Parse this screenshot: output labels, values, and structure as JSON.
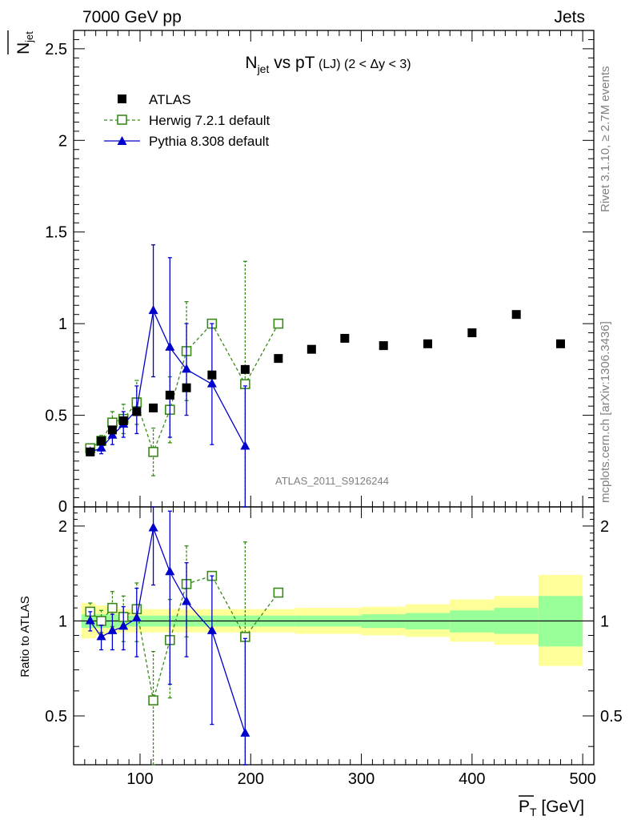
{
  "header": {
    "left": "7000 GeV pp",
    "right": "Jets"
  },
  "side_text": {
    "rivet": "Rivet 3.1.10, ≥ 2.7M events",
    "mcplots": "mcplots.cern.ch [arXiv:1306.3436]"
  },
  "watermark": "ATLAS_2011_S9126244",
  "colors": {
    "atlas": "#000000",
    "herwig": "#3a8a1a",
    "pythia": "#0000cc",
    "band_outer": "#ffff99",
    "band_inner": "#99ff99"
  },
  "chart_data": [
    {
      "type": "scatter",
      "title": "N_jet vs pT (LJ) (2 < Δy < 3)",
      "title_parts": {
        "main": "N",
        "sub": "jet",
        "rest": " vs pT",
        "small": " (LJ) (2 < Δy < 3)"
      },
      "ylabel": "N_jet",
      "ylim": [
        0,
        2.6
      ],
      "xlim": [
        40,
        510
      ],
      "yticks": [
        {
          "v": 0.5,
          "label": "0.5"
        },
        {
          "v": 1,
          "label": "1"
        },
        {
          "v": 1.5,
          "label": "1.5"
        },
        {
          "v": 2,
          "label": "2"
        },
        {
          "v": 2.5,
          "label": "2.5"
        }
      ],
      "legend_position": "top-left",
      "series": [
        {
          "name": "ATLAS",
          "marker": "filled-square",
          "x": [
            55,
            65,
            75,
            85,
            97,
            112,
            127,
            142,
            165,
            195,
            225,
            255,
            285,
            320,
            360,
            400,
            440,
            480
          ],
          "y": [
            0.3,
            0.36,
            0.42,
            0.47,
            0.52,
            0.54,
            0.61,
            0.65,
            0.72,
            0.75,
            0.81,
            0.86,
            0.92,
            0.88,
            0.89,
            0.95,
            1.05,
            0.89
          ]
        },
        {
          "name": "Herwig 7.2.1 default",
          "marker": "open-square-dashed",
          "x": [
            55,
            65,
            75,
            85,
            97,
            112,
            127,
            142,
            165,
            195,
            225
          ],
          "y": [
            0.32,
            0.36,
            0.46,
            0.48,
            0.57,
            0.3,
            0.53,
            0.85,
            1.0,
            0.67,
            1.0
          ],
          "err": [
            0.02,
            0.03,
            0.06,
            0.08,
            0.12,
            0.13,
            0.18,
            0.27,
            0.0,
            0.67,
            0.0
          ]
        },
        {
          "name": "Pythia 8.308 default",
          "marker": "filled-triangle",
          "x": [
            55,
            65,
            75,
            85,
            97,
            112,
            127,
            142,
            165,
            195
          ],
          "y": [
            0.3,
            0.32,
            0.39,
            0.45,
            0.53,
            1.07,
            0.87,
            0.75,
            0.67,
            0.33
          ],
          "err": [
            0.02,
            0.03,
            0.05,
            0.07,
            0.13,
            0.36,
            0.49,
            0.25,
            0.33,
            0.33
          ]
        }
      ]
    },
    {
      "type": "scatter",
      "title": "",
      "ylabel": "Ratio to ATLAS",
      "xlabel": "P_T [GeV]",
      "xlabel_parts": {
        "main": "P",
        "sub": "T",
        "unit": " [GeV]"
      },
      "xticks": [
        {
          "v": 100,
          "label": "100"
        },
        {
          "v": 200,
          "label": "200"
        },
        {
          "v": 300,
          "label": "300"
        },
        {
          "v": 400,
          "label": "400"
        },
        {
          "v": 500,
          "label": "500"
        }
      ],
      "yticks": [
        {
          "v": 0.5,
          "label": "0.5"
        },
        {
          "v": 1,
          "label": "1"
        },
        {
          "v": 2,
          "label": "2"
        }
      ],
      "ylim": [
        0.35,
        2.3
      ],
      "yscale": "log",
      "bands": [
        {
          "x0": 47,
          "x1": 60,
          "outer": [
            0.88,
            1.14
          ],
          "inner": [
            0.95,
            1.05
          ]
        },
        {
          "x0": 60,
          "x1": 70,
          "outer": [
            0.9,
            1.12
          ],
          "inner": [
            0.95,
            1.05
          ]
        },
        {
          "x0": 70,
          "x1": 80,
          "outer": [
            0.91,
            1.1
          ],
          "inner": [
            0.95,
            1.05
          ]
        },
        {
          "x0": 80,
          "x1": 90,
          "outer": [
            0.92,
            1.09
          ],
          "inner": [
            0.96,
            1.04
          ]
        },
        {
          "x0": 90,
          "x1": 105,
          "outer": [
            0.92,
            1.09
          ],
          "inner": [
            0.96,
            1.04
          ]
        },
        {
          "x0": 105,
          "x1": 120,
          "outer": [
            0.92,
            1.09
          ],
          "inner": [
            0.96,
            1.04
          ]
        },
        {
          "x0": 120,
          "x1": 135,
          "outer": [
            0.92,
            1.09
          ],
          "inner": [
            0.96,
            1.04
          ]
        },
        {
          "x0": 135,
          "x1": 150,
          "outer": [
            0.92,
            1.09
          ],
          "inner": [
            0.96,
            1.04
          ]
        },
        {
          "x0": 150,
          "x1": 180,
          "outer": [
            0.92,
            1.09
          ],
          "inner": [
            0.96,
            1.04
          ]
        },
        {
          "x0": 180,
          "x1": 210,
          "outer": [
            0.92,
            1.09
          ],
          "inner": [
            0.96,
            1.04
          ]
        },
        {
          "x0": 210,
          "x1": 240,
          "outer": [
            0.92,
            1.09
          ],
          "inner": [
            0.96,
            1.04
          ]
        },
        {
          "x0": 240,
          "x1": 270,
          "outer": [
            0.91,
            1.1
          ],
          "inner": [
            0.96,
            1.04
          ]
        },
        {
          "x0": 270,
          "x1": 300,
          "outer": [
            0.91,
            1.1
          ],
          "inner": [
            0.96,
            1.04
          ]
        },
        {
          "x0": 300,
          "x1": 340,
          "outer": [
            0.9,
            1.11
          ],
          "inner": [
            0.95,
            1.05
          ]
        },
        {
          "x0": 340,
          "x1": 380,
          "outer": [
            0.89,
            1.13
          ],
          "inner": [
            0.94,
            1.06
          ]
        },
        {
          "x0": 380,
          "x1": 420,
          "outer": [
            0.86,
            1.17
          ],
          "inner": [
            0.92,
            1.08
          ]
        },
        {
          "x0": 420,
          "x1": 460,
          "outer": [
            0.84,
            1.2
          ],
          "inner": [
            0.91,
            1.1
          ]
        },
        {
          "x0": 460,
          "x1": 500,
          "outer": [
            0.72,
            1.4
          ],
          "inner": [
            0.83,
            1.2
          ]
        }
      ],
      "series": [
        {
          "name": "Herwig 7.2.1 default",
          "x": [
            55,
            65,
            75,
            85,
            97,
            112,
            127,
            142,
            165,
            195,
            225
          ],
          "y": [
            1.07,
            1.0,
            1.1,
            1.03,
            1.09,
            0.56,
            0.87,
            1.31,
            1.39,
            0.89,
            1.23
          ],
          "err": [
            0.07,
            0.08,
            0.14,
            0.17,
            0.23,
            0.24,
            0.3,
            0.42,
            0.0,
            0.89,
            0.0
          ]
        },
        {
          "name": "Pythia 8.308 default",
          "x": [
            55,
            65,
            75,
            85,
            97,
            112,
            127,
            142,
            165,
            195
          ],
          "y": [
            1.0,
            0.89,
            0.93,
            0.96,
            1.02,
            1.97,
            1.43,
            1.15,
            0.93,
            0.44
          ],
          "err": [
            0.07,
            0.08,
            0.12,
            0.15,
            0.25,
            0.67,
            0.8,
            0.38,
            0.46,
            0.44
          ]
        }
      ]
    }
  ]
}
